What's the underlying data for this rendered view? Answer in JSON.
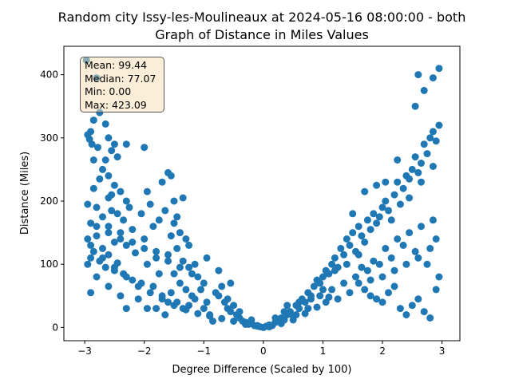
{
  "chart_data": {
    "type": "scatter",
    "title_line1": "Random city Issy-les-Moulineaux at 2024-05-16 08:00:00  - both",
    "title_line2": "Graph of Distance in Miles Values",
    "xlabel": "Degree Difference (Scaled by 100)",
    "ylabel": "Distance (Miles)",
    "xlim": [
      -3.35,
      3.3
    ],
    "ylim": [
      -21,
      445
    ],
    "xticks": [
      -3,
      -2,
      -1,
      0,
      1,
      2,
      3
    ],
    "yticks": [
      0,
      100,
      200,
      300,
      400
    ],
    "grid": false,
    "point_color": "#1f77b4",
    "stats": {
      "mean": "Mean: 99.44",
      "median": "Median: 77.07",
      "min": "Min: 0.00",
      "max": "Max: 423.09"
    },
    "points": [
      [
        -2.97,
        423
      ],
      [
        -2.8,
        395
      ],
      [
        -2.75,
        340
      ],
      [
        -2.85,
        328
      ],
      [
        -2.65,
        322
      ],
      [
        -2.9,
        310
      ],
      [
        -2.95,
        305
      ],
      [
        -2.6,
        300
      ],
      [
        -2.92,
        298
      ],
      [
        -2.88,
        290
      ],
      [
        -2.78,
        285
      ],
      [
        -2.5,
        290
      ],
      [
        -2.3,
        290
      ],
      [
        -2.55,
        280
      ],
      [
        -2.45,
        270
      ],
      [
        -2.65,
        265
      ],
      [
        -2.7,
        250
      ],
      [
        -2.6,
        240
      ],
      [
        -2.75,
        235
      ],
      [
        -2.5,
        225
      ],
      [
        -2.85,
        220
      ],
      [
        -2.4,
        215
      ],
      [
        -2.6,
        205
      ],
      [
        -2.3,
        200
      ],
      [
        -2.95,
        195
      ],
      [
        -2.8,
        190
      ],
      [
        -2.55,
        185
      ],
      [
        -2.45,
        180
      ],
      [
        -2.7,
        175
      ],
      [
        -2.35,
        170
      ],
      [
        -2.9,
        165
      ],
      [
        -2.6,
        160
      ],
      [
        -2.4,
        150
      ],
      [
        -2.2,
        155
      ],
      [
        -2.8,
        145
      ],
      [
        -2.95,
        140
      ],
      [
        -2.5,
        135
      ],
      [
        -2.3,
        130
      ],
      [
        -2.7,
        125
      ],
      [
        -2.85,
        120
      ],
      [
        -2.6,
        115
      ],
      [
        -2.15,
        118
      ],
      [
        -2.9,
        110
      ],
      [
        -2.75,
        105
      ],
      [
        -2.45,
        102
      ],
      [
        -2.95,
        100
      ],
      [
        -2.65,
        95
      ],
      [
        -2.5,
        90
      ],
      [
        -2.35,
        85
      ],
      [
        -2.8,
        80
      ],
      [
        -2.2,
        75
      ],
      [
        -2.05,
        70
      ],
      [
        -2.6,
        65
      ],
      [
        -2.9,
        55
      ],
      [
        -2.4,
        50
      ],
      [
        -2.1,
        45
      ],
      [
        -2.3,
        30
      ],
      [
        -1.95,
        30
      ],
      [
        -2.0,
        285
      ],
      [
        -1.95,
        215
      ],
      [
        -2.05,
        180
      ],
      [
        -1.9,
        195
      ],
      [
        -1.85,
        160
      ],
      [
        -2.0,
        140
      ],
      [
        -1.8,
        120
      ],
      [
        -1.95,
        100
      ],
      [
        -1.75,
        85
      ],
      [
        -1.85,
        65
      ],
      [
        -1.7,
        50
      ],
      [
        -1.8,
        30
      ],
      [
        -1.6,
        40
      ],
      [
        -1.65,
        20
      ],
      [
        -1.6,
        245
      ],
      [
        -1.55,
        240
      ],
      [
        -1.7,
        230
      ],
      [
        -1.5,
        200
      ],
      [
        -1.65,
        185
      ],
      [
        -1.45,
        175
      ],
      [
        -1.35,
        205
      ],
      [
        -1.5,
        165
      ],
      [
        -1.4,
        150
      ],
      [
        -1.55,
        145
      ],
      [
        -1.3,
        140
      ],
      [
        -1.45,
        125
      ],
      [
        -1.6,
        115
      ],
      [
        -1.35,
        105
      ],
      [
        -1.25,
        95
      ],
      [
        -1.5,
        85
      ],
      [
        -1.4,
        70
      ],
      [
        -1.3,
        60
      ],
      [
        -1.55,
        55
      ],
      [
        -1.2,
        50
      ],
      [
        -1.45,
        40
      ],
      [
        -1.35,
        30
      ],
      [
        -1.25,
        35
      ],
      [
        -1.15,
        100
      ],
      [
        -1.1,
        80
      ],
      [
        -1.05,
        60
      ],
      [
        -1.15,
        45
      ],
      [
        -0.95,
        40
      ],
      [
        -1.0,
        30
      ],
      [
        -0.9,
        20
      ],
      [
        -0.85,
        10
      ],
      [
        -0.7,
        65
      ],
      [
        -0.75,
        50
      ],
      [
        -0.65,
        40
      ],
      [
        -0.6,
        30
      ],
      [
        -0.55,
        25
      ],
      [
        -0.5,
        35
      ],
      [
        -0.45,
        20
      ],
      [
        -0.4,
        15
      ],
      [
        -0.35,
        10
      ],
      [
        -0.3,
        8
      ],
      [
        -0.25,
        5
      ],
      [
        -0.2,
        6
      ],
      [
        -0.15,
        3
      ],
      [
        -0.1,
        2
      ],
      [
        -0.05,
        1
      ],
      [
        0.0,
        0
      ],
      [
        0.05,
        2
      ],
      [
        0.1,
        4
      ],
      [
        0.15,
        3
      ],
      [
        0.2,
        8
      ],
      [
        0.25,
        10
      ],
      [
        0.3,
        15
      ],
      [
        0.35,
        12
      ],
      [
        0.4,
        20
      ],
      [
        0.45,
        25
      ],
      [
        0.5,
        18
      ],
      [
        0.55,
        35
      ],
      [
        0.6,
        30
      ],
      [
        0.65,
        45
      ],
      [
        0.7,
        40
      ],
      [
        0.75,
        55
      ],
      [
        0.8,
        50
      ],
      [
        0.85,
        65
      ],
      [
        0.9,
        75
      ],
      [
        0.95,
        70
      ],
      [
        1.0,
        80
      ],
      [
        1.05,
        90
      ],
      [
        1.1,
        85
      ],
      [
        1.15,
        100
      ],
      [
        1.2,
        110
      ],
      [
        1.25,
        95
      ],
      [
        1.3,
        125
      ],
      [
        1.35,
        115
      ],
      [
        1.4,
        140
      ],
      [
        1.45,
        130
      ],
      [
        1.5,
        150
      ],
      [
        1.55,
        120
      ],
      [
        1.6,
        160
      ],
      [
        1.65,
        145
      ],
      [
        1.7,
        135
      ],
      [
        1.75,
        170
      ],
      [
        1.8,
        155
      ],
      [
        1.85,
        180
      ],
      [
        1.9,
        165
      ],
      [
        1.95,
        175
      ],
      [
        2.0,
        190
      ],
      [
        2.05,
        200
      ],
      [
        2.1,
        185
      ],
      [
        2.15,
        170
      ],
      [
        2.2,
        210
      ],
      [
        2.25,
        230
      ],
      [
        2.3,
        195
      ],
      [
        2.35,
        220
      ],
      [
        2.4,
        240
      ],
      [
        2.45,
        235
      ],
      [
        2.5,
        250
      ],
      [
        2.55,
        270
      ],
      [
        2.6,
        245
      ],
      [
        2.65,
        260
      ],
      [
        2.7,
        290
      ],
      [
        2.75,
        275
      ],
      [
        2.8,
        300
      ],
      [
        2.85,
        310
      ],
      [
        2.9,
        295
      ],
      [
        2.95,
        320
      ],
      [
        2.55,
        350
      ],
      [
        2.7,
        375
      ],
      [
        2.85,
        395
      ],
      [
        2.95,
        410
      ],
      [
        2.6,
        400
      ],
      [
        1.6,
        70
      ],
      [
        1.7,
        60
      ],
      [
        1.8,
        50
      ],
      [
        1.9,
        45
      ],
      [
        2.0,
        40
      ],
      [
        2.1,
        55
      ],
      [
        2.2,
        65
      ],
      [
        2.3,
        30
      ],
      [
        2.4,
        20
      ],
      [
        2.5,
        35
      ],
      [
        2.6,
        45
      ],
      [
        2.7,
        25
      ],
      [
        2.8,
        15
      ],
      [
        2.9,
        60
      ],
      [
        2.95,
        80
      ],
      [
        2.75,
        100
      ],
      [
        2.55,
        120
      ],
      [
        2.35,
        130
      ],
      [
        2.15,
        110
      ],
      [
        1.95,
        100
      ],
      [
        1.75,
        90
      ],
      [
        1.55,
        80
      ],
      [
        1.35,
        70
      ],
      [
        1.15,
        60
      ],
      [
        0.95,
        50
      ],
      [
        0.75,
        30
      ],
      [
        0.55,
        20
      ],
      [
        0.35,
        25
      ],
      [
        1.05,
        40
      ],
      [
        1.25,
        45
      ],
      [
        1.45,
        55
      ],
      [
        1.65,
        95
      ],
      [
        1.85,
        105
      ],
      [
        2.05,
        125
      ],
      [
        2.25,
        140
      ],
      [
        2.45,
        150
      ],
      [
        2.65,
        160
      ],
      [
        2.85,
        170
      ],
      [
        2.9,
        140
      ],
      [
        2.8,
        125
      ],
      [
        2.6,
        110
      ],
      [
        2.4,
        100
      ],
      [
        2.2,
        90
      ],
      [
        2.0,
        80
      ],
      [
        1.8,
        75
      ],
      [
        1.6,
        115
      ],
      [
        1.4,
        100
      ],
      [
        1.2,
        90
      ],
      [
        1.0,
        60
      ],
      [
        0.8,
        45
      ],
      [
        0.6,
        40
      ],
      [
        0.4,
        35
      ],
      [
        0.2,
        15
      ],
      [
        -0.2,
        12
      ],
      [
        -0.4,
        25
      ],
      [
        -0.6,
        45
      ],
      [
        -0.8,
        55
      ],
      [
        -1.0,
        70
      ],
      [
        -1.2,
        85
      ],
      [
        -1.4,
        95
      ],
      [
        -1.6,
        105
      ],
      [
        -1.8,
        110
      ],
      [
        -2.0,
        125
      ],
      [
        -2.2,
        135
      ],
      [
        -2.4,
        140
      ],
      [
        -2.6,
        150
      ],
      [
        -2.8,
        160
      ],
      [
        -2.9,
        130
      ],
      [
        -2.7,
        110
      ],
      [
        -2.5,
        95
      ],
      [
        -2.3,
        80
      ],
      [
        -2.1,
        65
      ],
      [
        -1.9,
        55
      ],
      [
        -1.7,
        45
      ],
      [
        -1.5,
        35
      ],
      [
        -1.3,
        28
      ],
      [
        -1.1,
        22
      ],
      [
        -0.9,
        18
      ],
      [
        -0.7,
        14
      ],
      [
        -0.5,
        10
      ],
      [
        -0.3,
        5
      ],
      [
        -0.1,
        3
      ],
      [
        0.1,
        1
      ],
      [
        0.3,
        6
      ],
      [
        0.5,
        12
      ],
      [
        0.7,
        22
      ],
      [
        0.9,
        32
      ],
      [
        1.1,
        48
      ],
      [
        -2.85,
        265
      ],
      [
        -2.55,
        210
      ],
      [
        -2.25,
        190
      ],
      [
        -1.75,
        170
      ],
      [
        -1.25,
        130
      ],
      [
        -0.95,
        110
      ],
      [
        -0.75,
        90
      ],
      [
        -0.55,
        70
      ],
      [
        2.05,
        230
      ],
      [
        2.25,
        265
      ],
      [
        2.45,
        205
      ],
      [
        2.65,
        230
      ],
      [
        2.85,
        255
      ],
      [
        1.9,
        225
      ],
      [
        1.7,
        215
      ],
      [
        1.5,
        180
      ]
    ]
  }
}
